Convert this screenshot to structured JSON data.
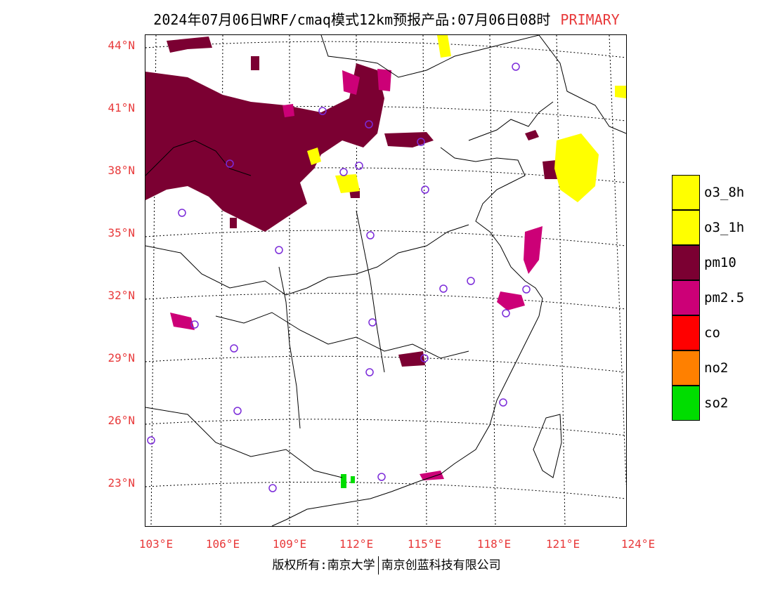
{
  "title": {
    "text": "2024年07月06日WRF/cmaq模式12km预报产品:07月06日08时",
    "tag": "PRIMARY"
  },
  "colors": {
    "axis_labels": "#e8393a",
    "o3_8h": "#ffff00",
    "o3_1h": "#ffff00",
    "pm10": "#7b0032",
    "pm2_5": "#cc0077",
    "co": "#ff0000",
    "no2": "#ff8000",
    "so2": "#00dd00",
    "station_marker": "#7b2bd9"
  },
  "map": {
    "lat_labels": [
      "44°N",
      "41°N",
      "38°N",
      "35°N",
      "32°N",
      "29°N",
      "26°N",
      "23°N"
    ],
    "lon_labels": [
      "103°E",
      "106°E",
      "109°E",
      "112°E",
      "115°E",
      "118°E",
      "121°E",
      "124°E"
    ],
    "region": "East China",
    "lat_range": [
      21,
      44.5
    ],
    "lon_range": [
      102.5,
      124
    ]
  },
  "legend": [
    {
      "label": "o3_8h",
      "color": "#ffff00"
    },
    {
      "label": "o3_1h",
      "color": "#ffff00"
    },
    {
      "label": "pm10",
      "color": "#7b0032"
    },
    {
      "label": "pm2.5",
      "color": "#cc0077"
    },
    {
      "label": "co",
      "color": "#ff0000"
    },
    {
      "label": "no2",
      "color": "#ff8000"
    },
    {
      "label": "so2",
      "color": "#00dd00"
    }
  ],
  "copyright": {
    "left": "版权所有:南京大学",
    "right": "南京创蓝科技有限公司"
  }
}
